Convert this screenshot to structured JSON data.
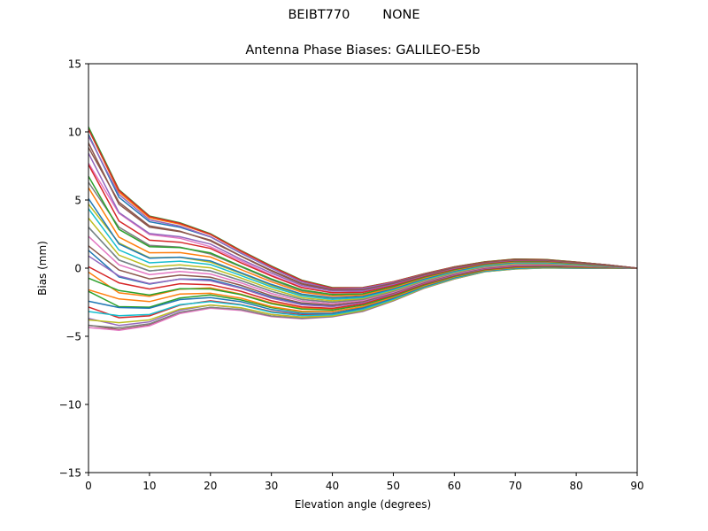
{
  "figure": {
    "suptitle": "BEIBT770        NONE",
    "title": "Antenna Phase Biases: GALILEO-E5b"
  },
  "chart_data": {
    "type": "line",
    "title": "Antenna Phase Biases: GALILEO-E5b",
    "suptitle": "BEIBT770        NONE",
    "xlabel": "Elevation angle (degrees)",
    "ylabel": "Bias (mm)",
    "xlim": [
      0,
      90
    ],
    "ylim": [
      -15,
      15
    ],
    "xticks": [
      0,
      10,
      20,
      30,
      40,
      50,
      60,
      70,
      80,
      90
    ],
    "yticks": [
      -15,
      -10,
      -5,
      0,
      5,
      10,
      15
    ],
    "ytick_labels": [
      "−15",
      "−10",
      "−5",
      "0",
      "5",
      "10",
      "15"
    ],
    "grid": false,
    "legend": "none",
    "x": [
      0,
      5,
      10,
      15,
      20,
      25,
      30,
      35,
      40,
      45,
      50,
      55,
      60,
      65,
      70,
      75,
      80,
      85,
      90
    ],
    "series_description": "One line per azimuth (0..350 deg); bias(az,el) = mean[el] + amp_cos[el]*cos(az) + amp_sin2[el]*sin(2*az)",
    "azimuths": [
      0,
      10,
      20,
      30,
      40,
      50,
      60,
      70,
      80,
      90,
      100,
      110,
      120,
      130,
      140,
      150,
      160,
      170,
      180,
      190,
      200,
      210,
      220,
      230,
      240,
      250,
      260,
      270,
      280,
      290,
      300,
      310,
      320,
      330,
      340,
      350
    ],
    "mean": [
      3.0,
      0.6,
      -0.2,
      0.0,
      -0.2,
      -0.9,
      -1.7,
      -2.3,
      -2.5,
      -2.3,
      -1.7,
      -0.95,
      -0.35,
      0.1,
      0.3,
      0.32,
      0.22,
      0.12,
      0.0
    ],
    "amp_cos": [
      6.8,
      4.6,
      3.6,
      3.0,
      2.5,
      2.0,
      1.7,
      1.3,
      1.0,
      0.8,
      0.65,
      0.5,
      0.42,
      0.35,
      0.35,
      0.3,
      0.22,
      0.12,
      0.0
    ],
    "amp_sin2": [
      1.5,
      1.3,
      1.0,
      0.8,
      0.6,
      0.5,
      0.4,
      0.3,
      0.2,
      0.2,
      0.15,
      0.1,
      0.08,
      0.05,
      0.05,
      0.04,
      0.03,
      0.02,
      0.0
    ],
    "envelope_max": [
      10.8,
      6.3,
      4.2,
      3.7,
      2.8,
      1.5,
      0.2,
      -0.9,
      -1.4,
      -1.4,
      -1.0,
      -0.4,
      0.1,
      0.5,
      0.7,
      0.65,
      0.45,
      0.25,
      0.0
    ],
    "envelope_min": [
      -4.7,
      -5.0,
      -4.5,
      -3.5,
      -3.1,
      -3.2,
      -3.6,
      -3.8,
      -3.7,
      -3.2,
      -2.4,
      -1.5,
      -0.8,
      -0.3,
      -0.1,
      0.0,
      0.0,
      0.0,
      0.0
    ],
    "colors": [
      "#1f77b4",
      "#ff7f0e",
      "#2ca02c",
      "#d62728",
      "#9467bd",
      "#8c564b",
      "#e377c2",
      "#7f7f7f",
      "#bcbd22",
      "#17becf"
    ]
  }
}
